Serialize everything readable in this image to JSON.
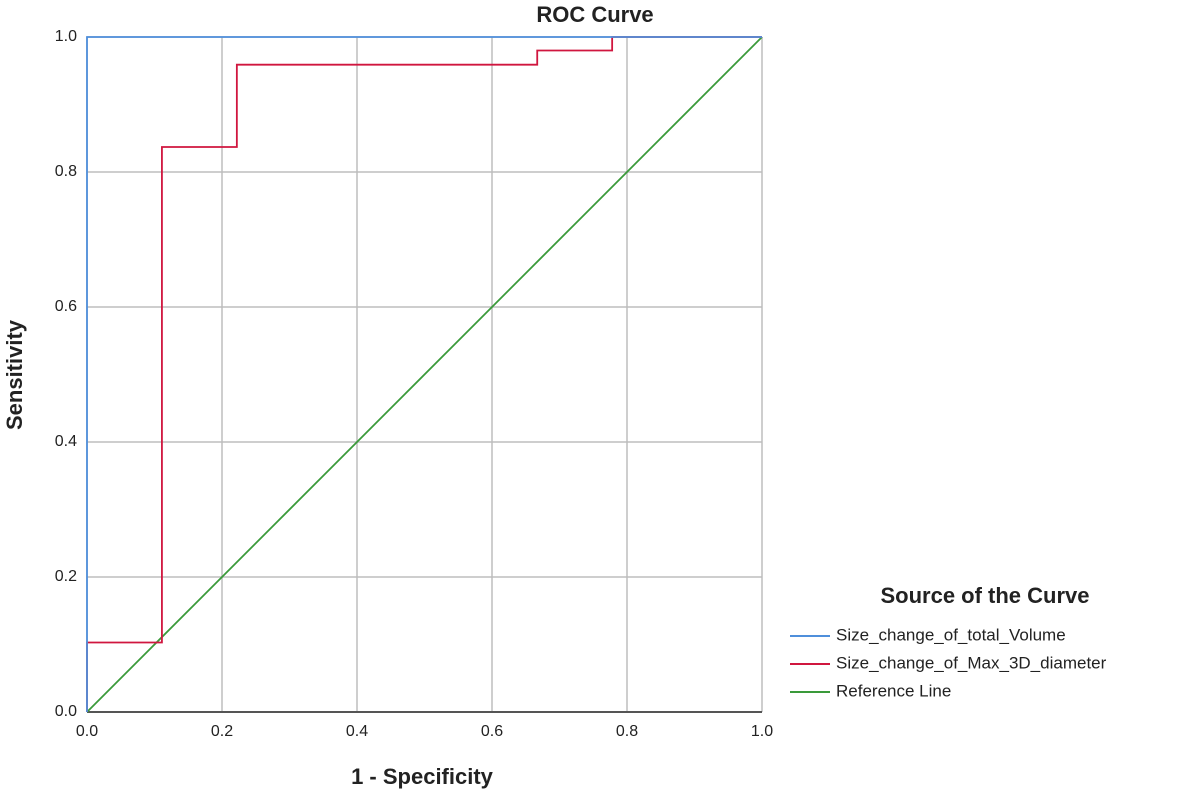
{
  "chart_data": {
    "type": "line",
    "title": "ROC Curve",
    "xlabel": "1 - Specificity",
    "ylabel": "Sensitivity",
    "xlim": [
      0,
      1
    ],
    "ylim": [
      0,
      1
    ],
    "xticks": [
      {
        "value": 0,
        "label": "0.0"
      },
      0.2,
      0.4,
      0.6,
      0.8,
      {
        "value": 1,
        "label": "1.0"
      }
    ],
    "yticks": [
      {
        "value": 0,
        "label": "0.0"
      },
      0.2,
      0.4,
      0.6,
      0.8,
      {
        "value": 1,
        "label": "1.0"
      }
    ],
    "grid": true,
    "legend_title": "Source of the Curve",
    "legend_position": "right",
    "series": [
      {
        "name": "Size_change_of_total_Volume",
        "color": "#4f8fdb",
        "x": [
          0,
          0,
          1
        ],
        "values": [
          0,
          1,
          1
        ]
      },
      {
        "name": "Size_change_of_Max_3D_diameter",
        "color": "#d0163f",
        "x": [
          0,
          0,
          0.111,
          0.111,
          0.222,
          0.222,
          0.667,
          0.667,
          0.778,
          0.778,
          1
        ],
        "values": [
          0,
          0.103,
          0.103,
          0.837,
          0.837,
          0.959,
          0.959,
          0.98,
          0.98,
          1,
          1
        ]
      },
      {
        "name": "Reference Line",
        "color": "#3a9a3a",
        "x": [
          0,
          1
        ],
        "values": [
          0,
          1
        ]
      }
    ]
  }
}
